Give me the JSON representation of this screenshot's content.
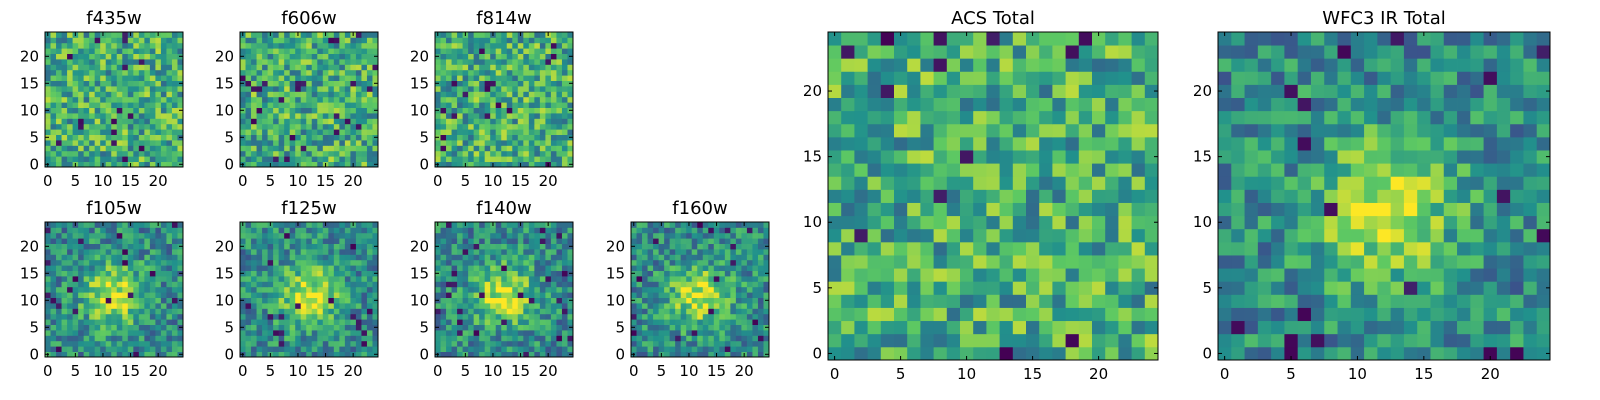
{
  "chart_data": [
    {
      "type": "heatmap",
      "title": "f435w",
      "size": 25,
      "xticks": [
        0,
        5,
        10,
        15,
        20
      ],
      "yticks": [
        0,
        5,
        10,
        15,
        20
      ],
      "pattern": "noise",
      "seed": 11
    },
    {
      "type": "heatmap",
      "title": "f606w",
      "size": 25,
      "xticks": [
        0,
        5,
        10,
        15,
        20
      ],
      "yticks": [
        0,
        5,
        10,
        15,
        20
      ],
      "pattern": "noise",
      "seed": 23
    },
    {
      "type": "heatmap",
      "title": "f814w",
      "size": 25,
      "xticks": [
        0,
        5,
        10,
        15,
        20
      ],
      "yticks": [
        0,
        5,
        10,
        15,
        20
      ],
      "pattern": "noise",
      "seed": 37
    },
    {
      "type": "heatmap",
      "title": "f105w",
      "size": 25,
      "xticks": [
        0,
        5,
        10,
        15,
        20
      ],
      "yticks": [
        0,
        5,
        10,
        15,
        20
      ],
      "pattern": "source",
      "seed": 41
    },
    {
      "type": "heatmap",
      "title": "f125w",
      "size": 25,
      "xticks": [
        0,
        5,
        10,
        15,
        20
      ],
      "yticks": [
        0,
        5,
        10,
        15,
        20
      ],
      "pattern": "source",
      "seed": 53
    },
    {
      "type": "heatmap",
      "title": "f140w",
      "size": 25,
      "xticks": [
        0,
        5,
        10,
        15,
        20
      ],
      "yticks": [
        0,
        5,
        10,
        15,
        20
      ],
      "pattern": "source",
      "seed": 67
    },
    {
      "type": "heatmap",
      "title": "f160w",
      "size": 25,
      "xticks": [
        0,
        5,
        10,
        15,
        20
      ],
      "yticks": [
        0,
        5,
        10,
        15,
        20
      ],
      "pattern": "source",
      "seed": 79
    },
    {
      "type": "heatmap",
      "title": "ACS Total",
      "size": 25,
      "xticks": [
        0,
        5,
        10,
        15,
        20
      ],
      "yticks": [
        0,
        5,
        10,
        15,
        20
      ],
      "pattern": "noise",
      "seed": 97
    },
    {
      "type": "heatmap",
      "title": "WFC3 IR Total",
      "size": 25,
      "xticks": [
        0,
        5,
        10,
        15,
        20
      ],
      "yticks": [
        0,
        5,
        10,
        15,
        20
      ],
      "pattern": "source",
      "seed": 113
    }
  ],
  "colormap": [
    "#440154",
    "#3b528b",
    "#21918c",
    "#5ec962",
    "#fde725"
  ]
}
